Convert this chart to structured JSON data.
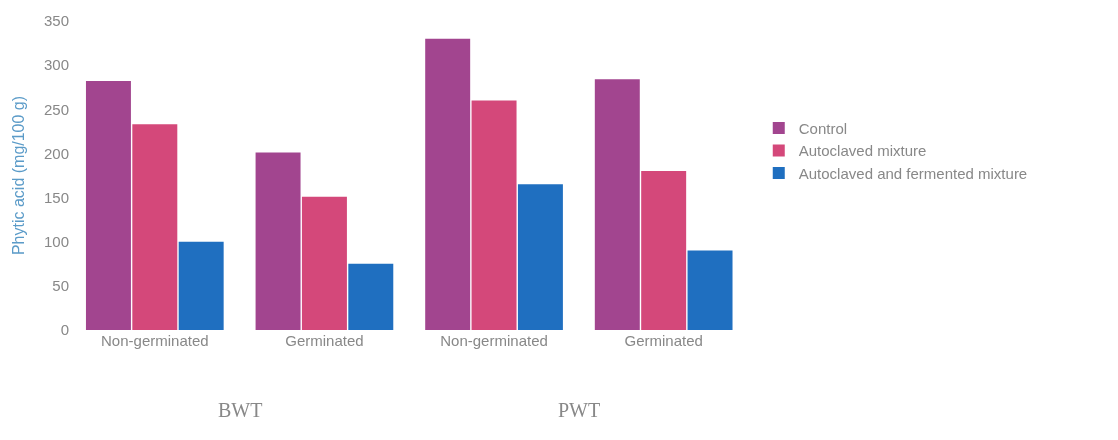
{
  "chart_data": {
    "type": "bar",
    "ylabel": "Phytic acid (mg/100 g)",
    "categories": [
      "Non-germinated",
      "Germinated",
      "Non-germinated",
      "Germinated"
    ],
    "series": [
      {
        "name": "Control",
        "color": "#a2458f",
        "values": [
          282,
          201,
          330,
          284
        ]
      },
      {
        "name": "Autoclaved mixture",
        "color": "#d4487a",
        "values": [
          233,
          151,
          260,
          180
        ]
      },
      {
        "name": "Autoclaved and fermented mixture",
        "color": "#1f6fc0",
        "values": [
          100,
          75,
          165,
          90
        ]
      }
    ],
    "ylim": [
      0,
      350
    ],
    "yticks": [
      0,
      50,
      100,
      150,
      200,
      250,
      300,
      350
    ],
    "legend": "right",
    "annotations": [
      "BWT",
      "PWT"
    ]
  }
}
